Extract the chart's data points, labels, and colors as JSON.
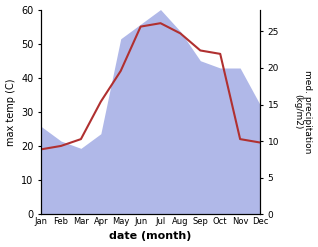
{
  "months": [
    "Jan",
    "Feb",
    "Mar",
    "Apr",
    "May",
    "Jun",
    "Jul",
    "Aug",
    "Sep",
    "Oct",
    "Nov",
    "Dec"
  ],
  "temperature": [
    19,
    20,
    22,
    33,
    42,
    55,
    56,
    53,
    48,
    47,
    22,
    21
  ],
  "precipitation": [
    12,
    10,
    9,
    11,
    24,
    26,
    28,
    25,
    21,
    20,
    20,
    15
  ],
  "temp_color": "#b03030",
  "precip_color": "#b0b8e8",
  "background_color": "#ffffff",
  "title_left": "max temp (C)",
  "title_right": "med. precipitation\n(kg/m2)",
  "xlabel": "date (month)",
  "ylim_left": [
    0,
    60
  ],
  "ylim_right": [
    0,
    28
  ],
  "yticks_left": [
    0,
    10,
    20,
    30,
    40,
    50,
    60
  ],
  "yticks_right": [
    0,
    5,
    10,
    15,
    20,
    25
  ]
}
